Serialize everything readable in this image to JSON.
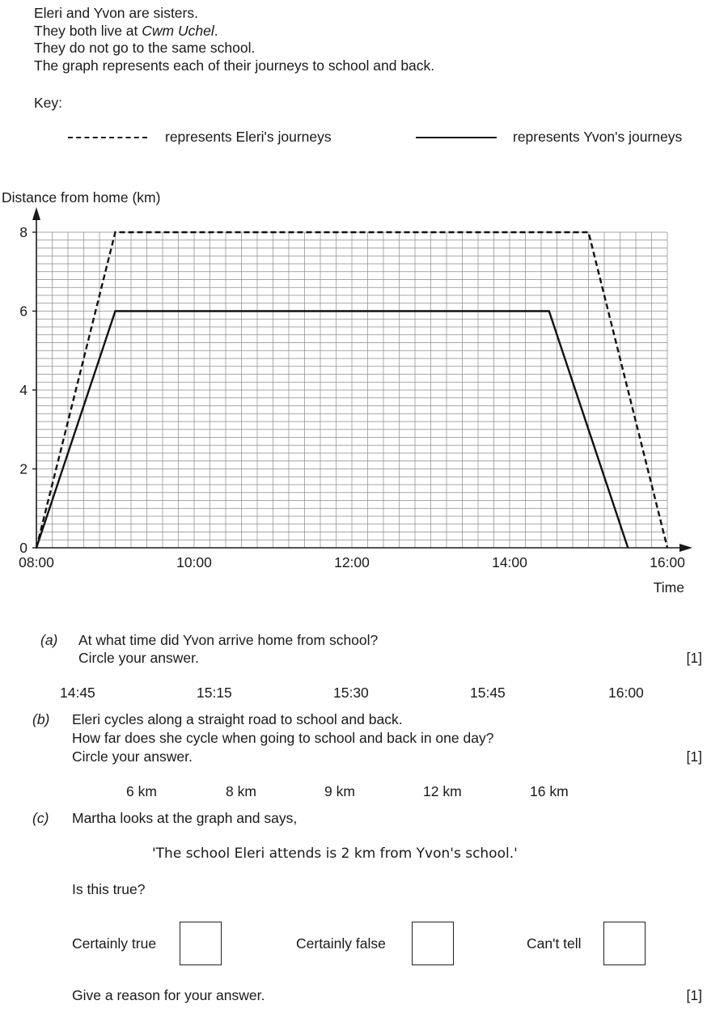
{
  "intro": {
    "line1": "Eleri and Yvon are sisters.",
    "line2_prefix": "They both live at ",
    "line2_place": "Cwm Uchel",
    "line2_suffix": ".",
    "line3": "They do not go to the same school.",
    "line4": "The graph represents each of their journeys to school and back."
  },
  "key": {
    "title": "Key:",
    "eleri_label": "represents Eleri's journeys",
    "yvon_label": "represents Yvon's journeys"
  },
  "chart_data": {
    "type": "line",
    "ylabel": "Distance from home (km)",
    "xlabel": "Time",
    "x_ticks": [
      "08:00",
      "10:00",
      "12:00",
      "14:00",
      "16:00"
    ],
    "y_ticks": [
      0,
      2,
      4,
      6,
      8
    ],
    "xlim": [
      "08:00",
      "16:00"
    ],
    "ylim": [
      0,
      8
    ],
    "grid": true,
    "series": [
      {
        "name": "Eleri",
        "style": "dashed",
        "points": [
          {
            "x": "08:00",
            "y": 0
          },
          {
            "x": "09:00",
            "y": 8
          },
          {
            "x": "15:00",
            "y": 8
          },
          {
            "x": "16:00",
            "y": 0
          }
        ]
      },
      {
        "name": "Yvon",
        "style": "solid",
        "points": [
          {
            "x": "08:00",
            "y": 0
          },
          {
            "x": "09:00",
            "y": 6
          },
          {
            "x": "14:30",
            "y": 6
          },
          {
            "x": "15:30",
            "y": 0
          }
        ]
      }
    ]
  },
  "questions": {
    "a": {
      "label": "(a)",
      "line1": "At what time did Yvon arrive home from school?",
      "line2": "Circle your answer.",
      "mark": "[1]",
      "options": [
        "14:45",
        "15:15",
        "15:30",
        "15:45",
        "16:00"
      ]
    },
    "b": {
      "label": "(b)",
      "line1": "Eleri cycles along a straight road to school and back.",
      "line2": "How far does she cycle when going to school and back in one day?",
      "line3": "Circle your answer.",
      "mark": "[1]",
      "options": [
        "6 km",
        "8 km",
        "9 km",
        "12 km",
        "16 km"
      ]
    },
    "c": {
      "label": "(c)",
      "line1": "Martha looks at the graph and says,",
      "quote": "'The school Eleri attends is 2 km from Yvon's school.'",
      "question": "Is this true?",
      "choices": [
        "Certainly true",
        "Certainly false",
        "Can't tell"
      ],
      "reason": "Give a reason for your answer.",
      "mark": "[1]"
    }
  }
}
